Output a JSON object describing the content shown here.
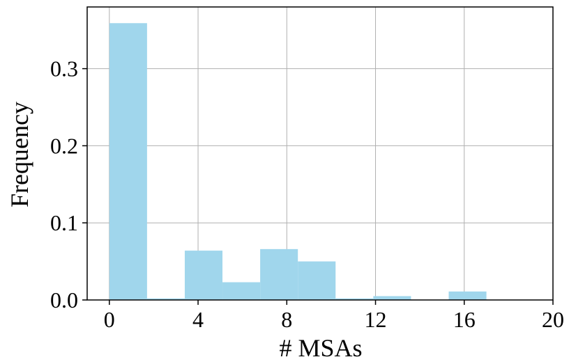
{
  "chart_data": {
    "type": "bar",
    "xlabel": "# MSAs",
    "ylabel": "Frequency",
    "xlim": [
      -1,
      20
    ],
    "ylim": [
      0,
      0.38
    ],
    "grid": true,
    "xticks": [
      0,
      4,
      8,
      12,
      16,
      20
    ],
    "xtick_labels": [
      "0",
      "4",
      "8",
      "12",
      "16",
      "20"
    ],
    "yticks": [
      0.0,
      0.1,
      0.2,
      0.3
    ],
    "ytick_labels": [
      "0.0",
      "0.1",
      "0.2",
      "0.3"
    ],
    "bar_color": "#a0d6ec",
    "bins": [
      {
        "start": 0.0,
        "end": 1.7,
        "value": 0.359
      },
      {
        "start": 1.7,
        "end": 3.4,
        "value": 0.002
      },
      {
        "start": 3.4,
        "end": 5.1,
        "value": 0.064
      },
      {
        "start": 5.1,
        "end": 6.8,
        "value": 0.023
      },
      {
        "start": 6.8,
        "end": 8.5,
        "value": 0.066
      },
      {
        "start": 8.5,
        "end": 10.2,
        "value": 0.05
      },
      {
        "start": 10.2,
        "end": 11.9,
        "value": 0.002
      },
      {
        "start": 11.9,
        "end": 13.6,
        "value": 0.005
      },
      {
        "start": 13.6,
        "end": 15.3,
        "value": 0.0
      },
      {
        "start": 15.3,
        "end": 17.0,
        "value": 0.011
      },
      {
        "start": 17.0,
        "end": 18.7,
        "value": 0.0
      }
    ]
  }
}
